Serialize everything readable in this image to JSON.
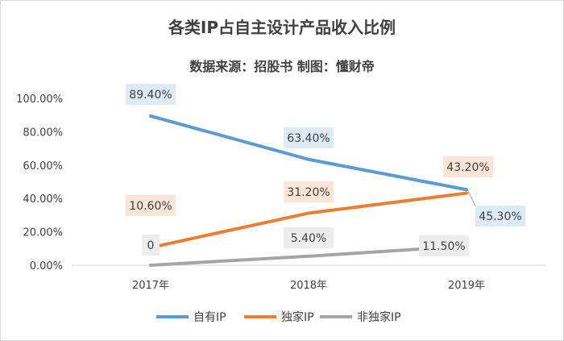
{
  "chart_data": {
    "type": "line",
    "title": "各类IP占自主设计产品收入比例",
    "subtitle": "数据来源：招股书 制图：懂财帝",
    "categories": [
      "2017年",
      "2018年",
      "2019年"
    ],
    "ylim": [
      0,
      100
    ],
    "yticks": [
      "0.00%",
      "20.00%",
      "40.00%",
      "60.00%",
      "80.00%",
      "100.00%"
    ],
    "grid": false,
    "legend_position": "bottom",
    "series": [
      {
        "name": "自有IP",
        "color": "#5b9bd5",
        "label_bg": "#ddebf7",
        "values": [
          89.4,
          63.4,
          45.3
        ],
        "labels": [
          "89.40%",
          "63.40%",
          "45.30%"
        ]
      },
      {
        "name": "独家IP",
        "color": "#ed7d31",
        "label_bg": "#fbe5d6",
        "values": [
          10.6,
          31.2,
          43.2
        ],
        "labels": [
          "10.60%",
          "31.20%",
          "43.20%"
        ]
      },
      {
        "name": "非独家IP",
        "color": "#a5a5a5",
        "label_bg": "#ededed",
        "values": [
          0,
          5.4,
          11.5
        ],
        "labels": [
          "0",
          "5.40%",
          "11.50%"
        ]
      }
    ]
  }
}
